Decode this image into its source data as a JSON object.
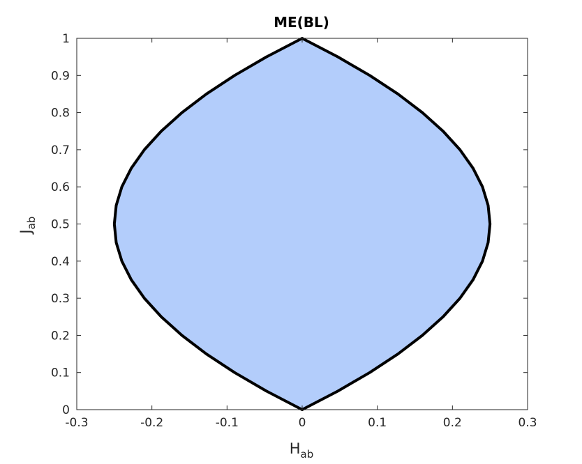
{
  "chart_data": {
    "type": "area",
    "title": "ME(BL)",
    "xlabel": {
      "main": "H",
      "sub": "ab"
    },
    "ylabel": {
      "main": "J",
      "sub": "ab"
    },
    "xlim": [
      -0.3,
      0.3
    ],
    "ylim": [
      0,
      1
    ],
    "x_ticks": [
      -0.3,
      -0.2,
      -0.1,
      0,
      0.1,
      0.2,
      0.3
    ],
    "x_tick_labels": [
      "-0.3",
      "-0.2",
      "-0.1",
      "0",
      "0.1",
      "0.2",
      "0.3"
    ],
    "y_ticks": [
      0,
      0.1,
      0.2,
      0.3,
      0.4,
      0.5,
      0.6,
      0.7,
      0.8,
      0.9,
      1
    ],
    "y_tick_labels": [
      "0",
      "0.1",
      "0.2",
      "0.3",
      "0.4",
      "0.5",
      "0.6",
      "0.7",
      "0.8",
      "0.9",
      "1"
    ],
    "grid": false,
    "series": [
      {
        "kind": "filled-region",
        "points": [
          {
            "x": 0,
            "y": 0
          },
          {
            "x": 0.047,
            "y": 0.05
          },
          {
            "x": 0.09,
            "y": 0.1
          },
          {
            "x": 0.128,
            "y": 0.15
          },
          {
            "x": 0.16,
            "y": 0.2
          },
          {
            "x": 0.1875,
            "y": 0.25
          },
          {
            "x": 0.21,
            "y": 0.3
          },
          {
            "x": 0.2275,
            "y": 0.35
          },
          {
            "x": 0.24,
            "y": 0.4
          },
          {
            "x": 0.2475,
            "y": 0.45
          },
          {
            "x": 0.25,
            "y": 0.5
          },
          {
            "x": 0.2475,
            "y": 0.55
          },
          {
            "x": 0.24,
            "y": 0.6
          },
          {
            "x": 0.2275,
            "y": 0.65
          },
          {
            "x": 0.21,
            "y": 0.7
          },
          {
            "x": 0.1875,
            "y": 0.75
          },
          {
            "x": 0.16,
            "y": 0.8
          },
          {
            "x": 0.128,
            "y": 0.85
          },
          {
            "x": 0.09,
            "y": 0.9
          },
          {
            "x": 0.047,
            "y": 0.95
          },
          {
            "x": 0,
            "y": 1
          },
          {
            "x": -0.047,
            "y": 0.95
          },
          {
            "x": -0.09,
            "y": 0.9
          },
          {
            "x": -0.128,
            "y": 0.85
          },
          {
            "x": -0.16,
            "y": 0.8
          },
          {
            "x": -0.1875,
            "y": 0.75
          },
          {
            "x": -0.21,
            "y": 0.7
          },
          {
            "x": -0.2275,
            "y": 0.65
          },
          {
            "x": -0.24,
            "y": 0.6
          },
          {
            "x": -0.2475,
            "y": 0.55
          },
          {
            "x": -0.25,
            "y": 0.5
          },
          {
            "x": -0.2475,
            "y": 0.45
          },
          {
            "x": -0.24,
            "y": 0.4
          },
          {
            "x": -0.2275,
            "y": 0.35
          },
          {
            "x": -0.21,
            "y": 0.3
          },
          {
            "x": -0.1875,
            "y": 0.25
          },
          {
            "x": -0.16,
            "y": 0.2
          },
          {
            "x": -0.128,
            "y": 0.15
          },
          {
            "x": -0.09,
            "y": 0.1
          },
          {
            "x": -0.047,
            "y": 0.05
          },
          {
            "x": 0,
            "y": 0
          }
        ],
        "fill_color": "#b3cdfb"
      },
      {
        "kind": "boundary-line",
        "equation": "H = ±J(1-J)",
        "points": [
          {
            "x": 0,
            "y": 0
          },
          {
            "x": 0.0475,
            "y": 0.05
          },
          {
            "x": 0.09,
            "y": 0.1
          },
          {
            "x": 0.1275,
            "y": 0.15
          },
          {
            "x": 0.16,
            "y": 0.2
          },
          {
            "x": 0.1875,
            "y": 0.25
          },
          {
            "x": 0.21,
            "y": 0.3
          },
          {
            "x": 0.2275,
            "y": 0.35
          },
          {
            "x": 0.24,
            "y": 0.4
          },
          {
            "x": 0.2475,
            "y": 0.45
          },
          {
            "x": 0.25,
            "y": 0.5
          },
          {
            "x": 0.2475,
            "y": 0.55
          },
          {
            "x": 0.24,
            "y": 0.6
          },
          {
            "x": 0.2275,
            "y": 0.65
          },
          {
            "x": 0.21,
            "y": 0.7
          },
          {
            "x": 0.1875,
            "y": 0.75
          },
          {
            "x": 0.16,
            "y": 0.8
          },
          {
            "x": 0.1275,
            "y": 0.85
          },
          {
            "x": 0.09,
            "y": 0.9
          },
          {
            "x": 0.0475,
            "y": 0.95
          },
          {
            "x": 0,
            "y": 1
          },
          {
            "x": -0.0475,
            "y": 0.95
          },
          {
            "x": -0.09,
            "y": 0.9
          },
          {
            "x": -0.1275,
            "y": 0.85
          },
          {
            "x": -0.16,
            "y": 0.8
          },
          {
            "x": -0.1875,
            "y": 0.75
          },
          {
            "x": -0.21,
            "y": 0.7
          },
          {
            "x": -0.2275,
            "y": 0.65
          },
          {
            "x": -0.24,
            "y": 0.6
          },
          {
            "x": -0.2475,
            "y": 0.55
          },
          {
            "x": -0.25,
            "y": 0.5
          },
          {
            "x": -0.2475,
            "y": 0.45
          },
          {
            "x": -0.24,
            "y": 0.4
          },
          {
            "x": -0.2275,
            "y": 0.35
          },
          {
            "x": -0.21,
            "y": 0.3
          },
          {
            "x": -0.1875,
            "y": 0.25
          },
          {
            "x": -0.16,
            "y": 0.2
          },
          {
            "x": -0.1275,
            "y": 0.15
          },
          {
            "x": -0.09,
            "y": 0.1
          },
          {
            "x": -0.0475,
            "y": 0.05
          },
          {
            "x": 0,
            "y": 0
          }
        ],
        "line_color": "#000000"
      }
    ],
    "colors": {
      "fill": "#b3cdfb",
      "boundary": "#000000",
      "axes": "#262626",
      "background": "#ffffff"
    }
  }
}
